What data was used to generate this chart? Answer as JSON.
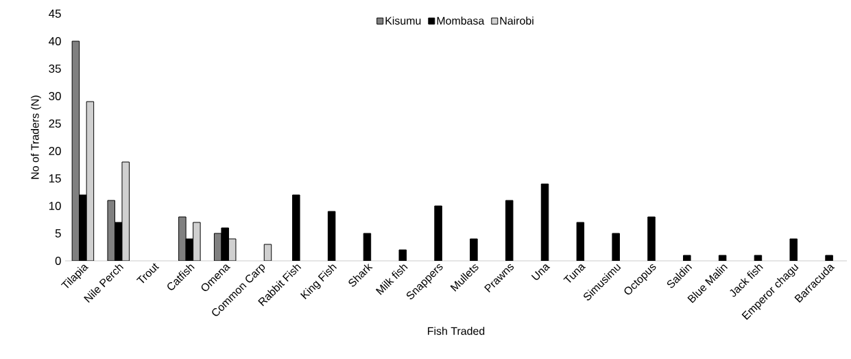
{
  "chart_data": {
    "type": "bar",
    "xlabel": "Fish Traded",
    "ylabel": "No of Traders (N)",
    "categories": [
      "Tilapia",
      "Nile Perch",
      "Trout",
      "Catfish",
      "Omena",
      "Common Carp",
      "Rabbit Fish",
      "King Fish",
      "Shark",
      "Milk fish",
      "Snappers",
      "Mullets",
      "Prawns",
      "Una",
      "Tuna",
      "Simusimu",
      "Octopus",
      "Saldin",
      "Blue Malin",
      "Jack fish",
      "Emperor chagu",
      "Barracuda"
    ],
    "series": [
      {
        "name": "Kisumu",
        "color": "#808080",
        "values": [
          40,
          11,
          null,
          8,
          5,
          null,
          null,
          null,
          null,
          null,
          null,
          null,
          null,
          null,
          null,
          null,
          null,
          null,
          null,
          null,
          null,
          null
        ]
      },
      {
        "name": "Mombasa",
        "color": "#000000",
        "values": [
          12,
          7,
          null,
          4,
          6,
          null,
          12,
          9,
          5,
          2,
          10,
          4,
          11,
          14,
          7,
          5,
          8,
          1,
          1,
          1,
          4,
          1
        ]
      },
      {
        "name": "Nairobi",
        "color": "#d0d0d0",
        "values": [
          29,
          18,
          null,
          7,
          4,
          3,
          null,
          null,
          null,
          null,
          null,
          null,
          null,
          null,
          null,
          null,
          null,
          null,
          null,
          null,
          null,
          null
        ]
      }
    ],
    "ylim": [
      0,
      45
    ],
    "yticks": [
      0,
      5,
      10,
      15,
      20,
      25,
      30,
      35,
      40,
      45
    ],
    "grid": false,
    "legend": "top"
  }
}
